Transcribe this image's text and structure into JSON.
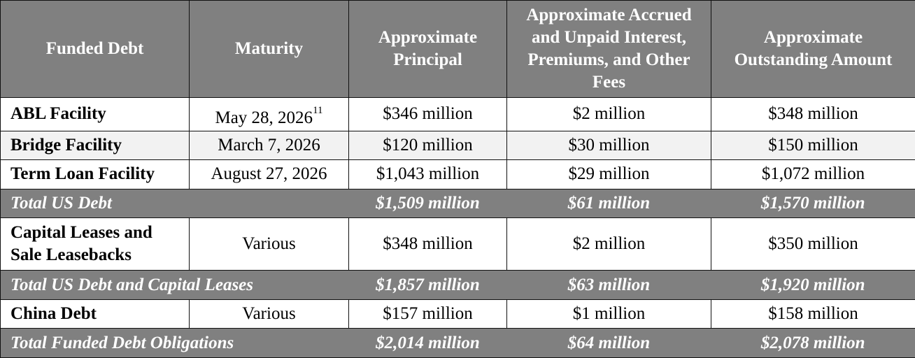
{
  "headers": [
    "Funded Debt",
    "Maturity",
    "Approximate Principal",
    "Approximate Accrued and Unpaid Interest, Premiums, and Other Fees",
    "Approximate Outstanding Amount"
  ],
  "rows": {
    "abl": {
      "name": "ABL Facility",
      "maturity": "May 28, 2026",
      "footnote": "11",
      "principal": "$346 million",
      "interest": "$2 million",
      "outstanding": "$348 million"
    },
    "bridge": {
      "name": "Bridge Facility",
      "maturity": "March 7, 2026",
      "principal": "$120 million",
      "interest": "$30 million",
      "outstanding": "$150 million"
    },
    "term": {
      "name": "Term Loan Facility",
      "maturity": "August 27, 2026",
      "principal": "$1,043 million",
      "interest": "$29 million",
      "outstanding": "$1,072 million"
    },
    "total_us": {
      "name": "Total US Debt",
      "principal": "$1,509 million",
      "interest": "$61 million",
      "outstanding": "$1,570 million"
    },
    "capital": {
      "name": "Capital Leases and Sale Leasebacks",
      "maturity": "Various",
      "principal": "$348 million",
      "interest": "$2 million",
      "outstanding": "$350 million"
    },
    "total_us_cap": {
      "name": "Total US Debt and Capital Leases",
      "principal": "$1,857 million",
      "interest": "$63 million",
      "outstanding": "$1,920 million"
    },
    "china": {
      "name": "China Debt",
      "maturity": "Various",
      "principal": "$157 million",
      "interest": "$1 million",
      "outstanding": "$158 million"
    },
    "total_funded": {
      "name": "Total Funded Debt Obligations",
      "principal": "$2,014 million",
      "interest": "$64 million",
      "outstanding": "$2,078 million"
    }
  },
  "colors": {
    "header_bg": "#808080",
    "header_text": "#ffffff",
    "shade_row": "#f2f2f2"
  }
}
